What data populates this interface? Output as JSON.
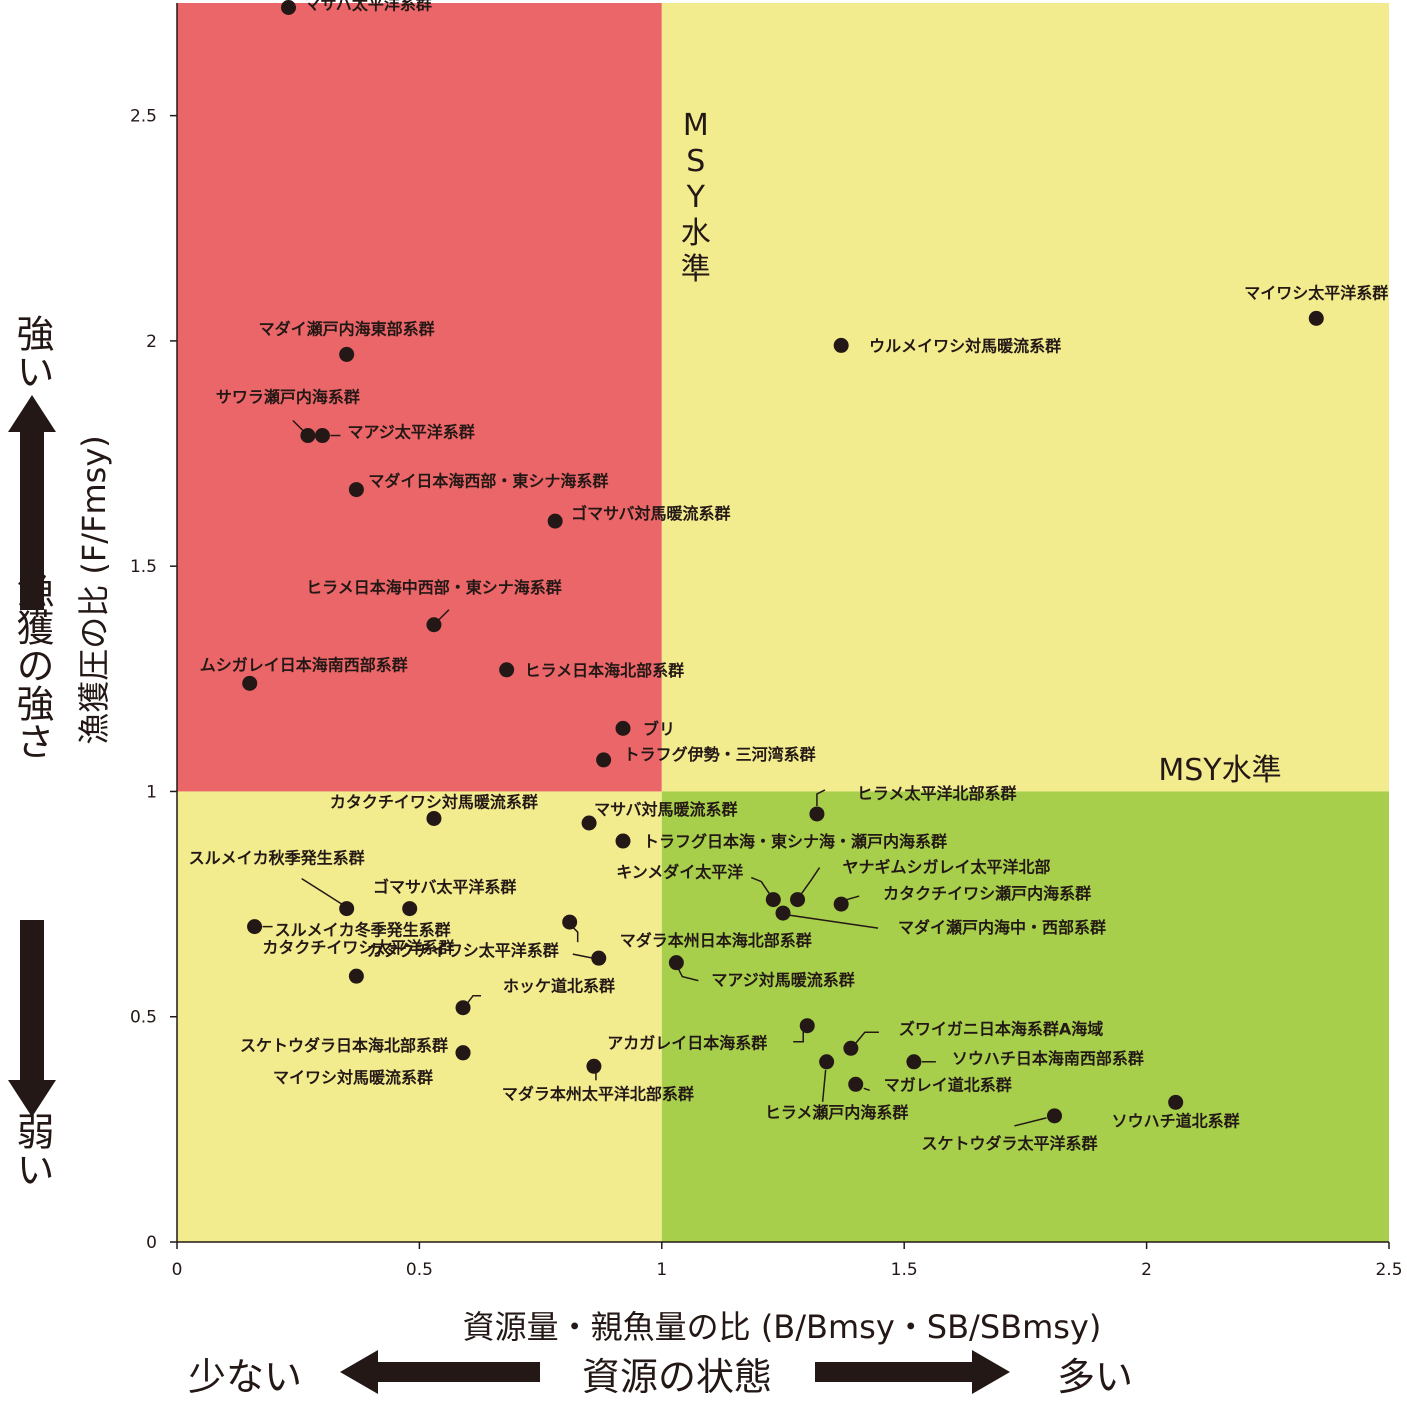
{
  "chart_data": {
    "type": "scatter",
    "xlabel": "資源量・親魚量の比 (B/Bmsy・SB/SBmsy)",
    "ylabel": "漁獲圧の比 (F/Fmsy)",
    "xlim": [
      0,
      2.5
    ],
    "ylim": [
      0,
      2.75
    ],
    "x_ticks": [
      "0",
      "0.5",
      "1",
      "1.5",
      "2",
      "2.5"
    ],
    "y_ticks": [
      "0",
      "0.5",
      "1",
      "1.5",
      "2",
      "2.5"
    ],
    "threshold": {
      "x": 1,
      "y": 1
    },
    "colors": {
      "overfished": "#eb6669",
      "caution": "#f2ec8f",
      "healthy": "#a7cf4b",
      "point": "#231815"
    },
    "quadrant_labels": {
      "vertical_msy_letters": [
        "M",
        "S",
        "Y",
        "水",
        "準"
      ],
      "horizontal_msy": "MSY水準"
    },
    "points": [
      {
        "name": "マサバ太平洋系群",
        "x": 0.23,
        "y": 2.74
      },
      {
        "name": "マイワシ太平洋系群",
        "x": 2.35,
        "y": 2.05
      },
      {
        "name": "ウルメイワシ対馬暖流系群",
        "x": 1.37,
        "y": 1.99
      },
      {
        "name": "マダイ瀬戸内海東部系群",
        "x": 0.35,
        "y": 1.97
      },
      {
        "name": "サワラ瀬戸内海系群",
        "x": 0.27,
        "y": 1.79
      },
      {
        "name": "マアジ太平洋系群",
        "x": 0.3,
        "y": 1.79
      },
      {
        "name": "マダイ日本海西部・東シナ海系群",
        "x": 0.37,
        "y": 1.67
      },
      {
        "name": "ゴマサバ対馬暖流系群",
        "x": 0.78,
        "y": 1.6
      },
      {
        "name": "ヒラメ日本海中西部・東シナ海系群",
        "x": 0.53,
        "y": 1.37
      },
      {
        "name": "ヒラメ日本海北部系群",
        "x": 0.68,
        "y": 1.27
      },
      {
        "name": "ムシガレイ日本海南西部系群",
        "x": 0.15,
        "y": 1.24
      },
      {
        "name": "ブリ",
        "x": 0.92,
        "y": 1.14
      },
      {
        "name": "トラフグ伊勢・三河湾系群",
        "x": 0.88,
        "y": 1.07
      },
      {
        "name": "ヒラメ太平洋北部系群",
        "x": 1.32,
        "y": 0.95
      },
      {
        "name": "カタクチイワシ対馬暖流系群",
        "x": 0.53,
        "y": 0.94
      },
      {
        "name": "マサバ対馬暖流系群",
        "x": 0.85,
        "y": 0.93
      },
      {
        "name": "トラフグ日本海・東シナ海・瀬戸内海系群",
        "x": 0.92,
        "y": 0.89
      },
      {
        "name": "ヤナギムシガレイ太平洋北部",
        "x": 1.28,
        "y": 0.76
      },
      {
        "name": "キンメダイ太平洋",
        "x": 1.23,
        "y": 0.76
      },
      {
        "name": "カタクチイワシ瀬戸内海系群",
        "x": 1.37,
        "y": 0.75
      },
      {
        "name": "マダイ瀬戸内海中・西部系群",
        "x": 1.25,
        "y": 0.73
      },
      {
        "name": "スルメイカ秋季発生系群",
        "x": 0.35,
        "y": 0.74
      },
      {
        "name": "ゴマサバ太平洋系群",
        "x": 0.48,
        "y": 0.74
      },
      {
        "name": "スルメイカ冬季発生系群",
        "x": 0.16,
        "y": 0.7
      },
      {
        "name": "マダラ本州日本海北部系群",
        "x": 0.81,
        "y": 0.71
      },
      {
        "name": "カタクチイワシ太平洋系群",
        "x": 0.87,
        "y": 0.63
      },
      {
        "name": "マアジ対馬暖流系群",
        "x": 1.03,
        "y": 0.62
      },
      {
        "name": "カタクチイワシ太平洋系群",
        "x": 0.37,
        "y": 0.59
      },
      {
        "name": "ホッケ道北系群",
        "x": 0.59,
        "y": 0.52
      },
      {
        "name": "スケトウダラ日本海北部系群",
        "x": 0.59,
        "y": 0.42
      },
      {
        "name": "アカガレイ日本海系群",
        "x": 1.3,
        "y": 0.48
      },
      {
        "name": "ズワイガニ日本海系群A海域",
        "x": 1.39,
        "y": 0.43
      },
      {
        "name": "ソウハチ日本海南西部系群",
        "x": 1.52,
        "y": 0.4
      },
      {
        "name": "ヒラメ瀬戸内海系群",
        "x": 1.34,
        "y": 0.4
      },
      {
        "name": "マダラ本州太平洋北部系群",
        "x": 0.86,
        "y": 0.39
      },
      {
        "name": "マガレイ道北系群",
        "x": 1.4,
        "y": 0.35
      },
      {
        "name": "ソウハチ道北系群",
        "x": 2.06,
        "y": 0.31
      },
      {
        "name": "スケトウダラ太平洋系群",
        "x": 1.81,
        "y": 0.28
      },
      {
        "name": "マイワシ対馬暖流系群",
        "x": 0.59,
        "y": 0.42
      }
    ]
  },
  "side_labels": {
    "strong": "強い",
    "fishing_strength": "漁獲の強さ",
    "weak": "弱い"
  },
  "bottom_labels": {
    "few": "少ない",
    "stock_status": "資源の状態",
    "many": "多い"
  }
}
